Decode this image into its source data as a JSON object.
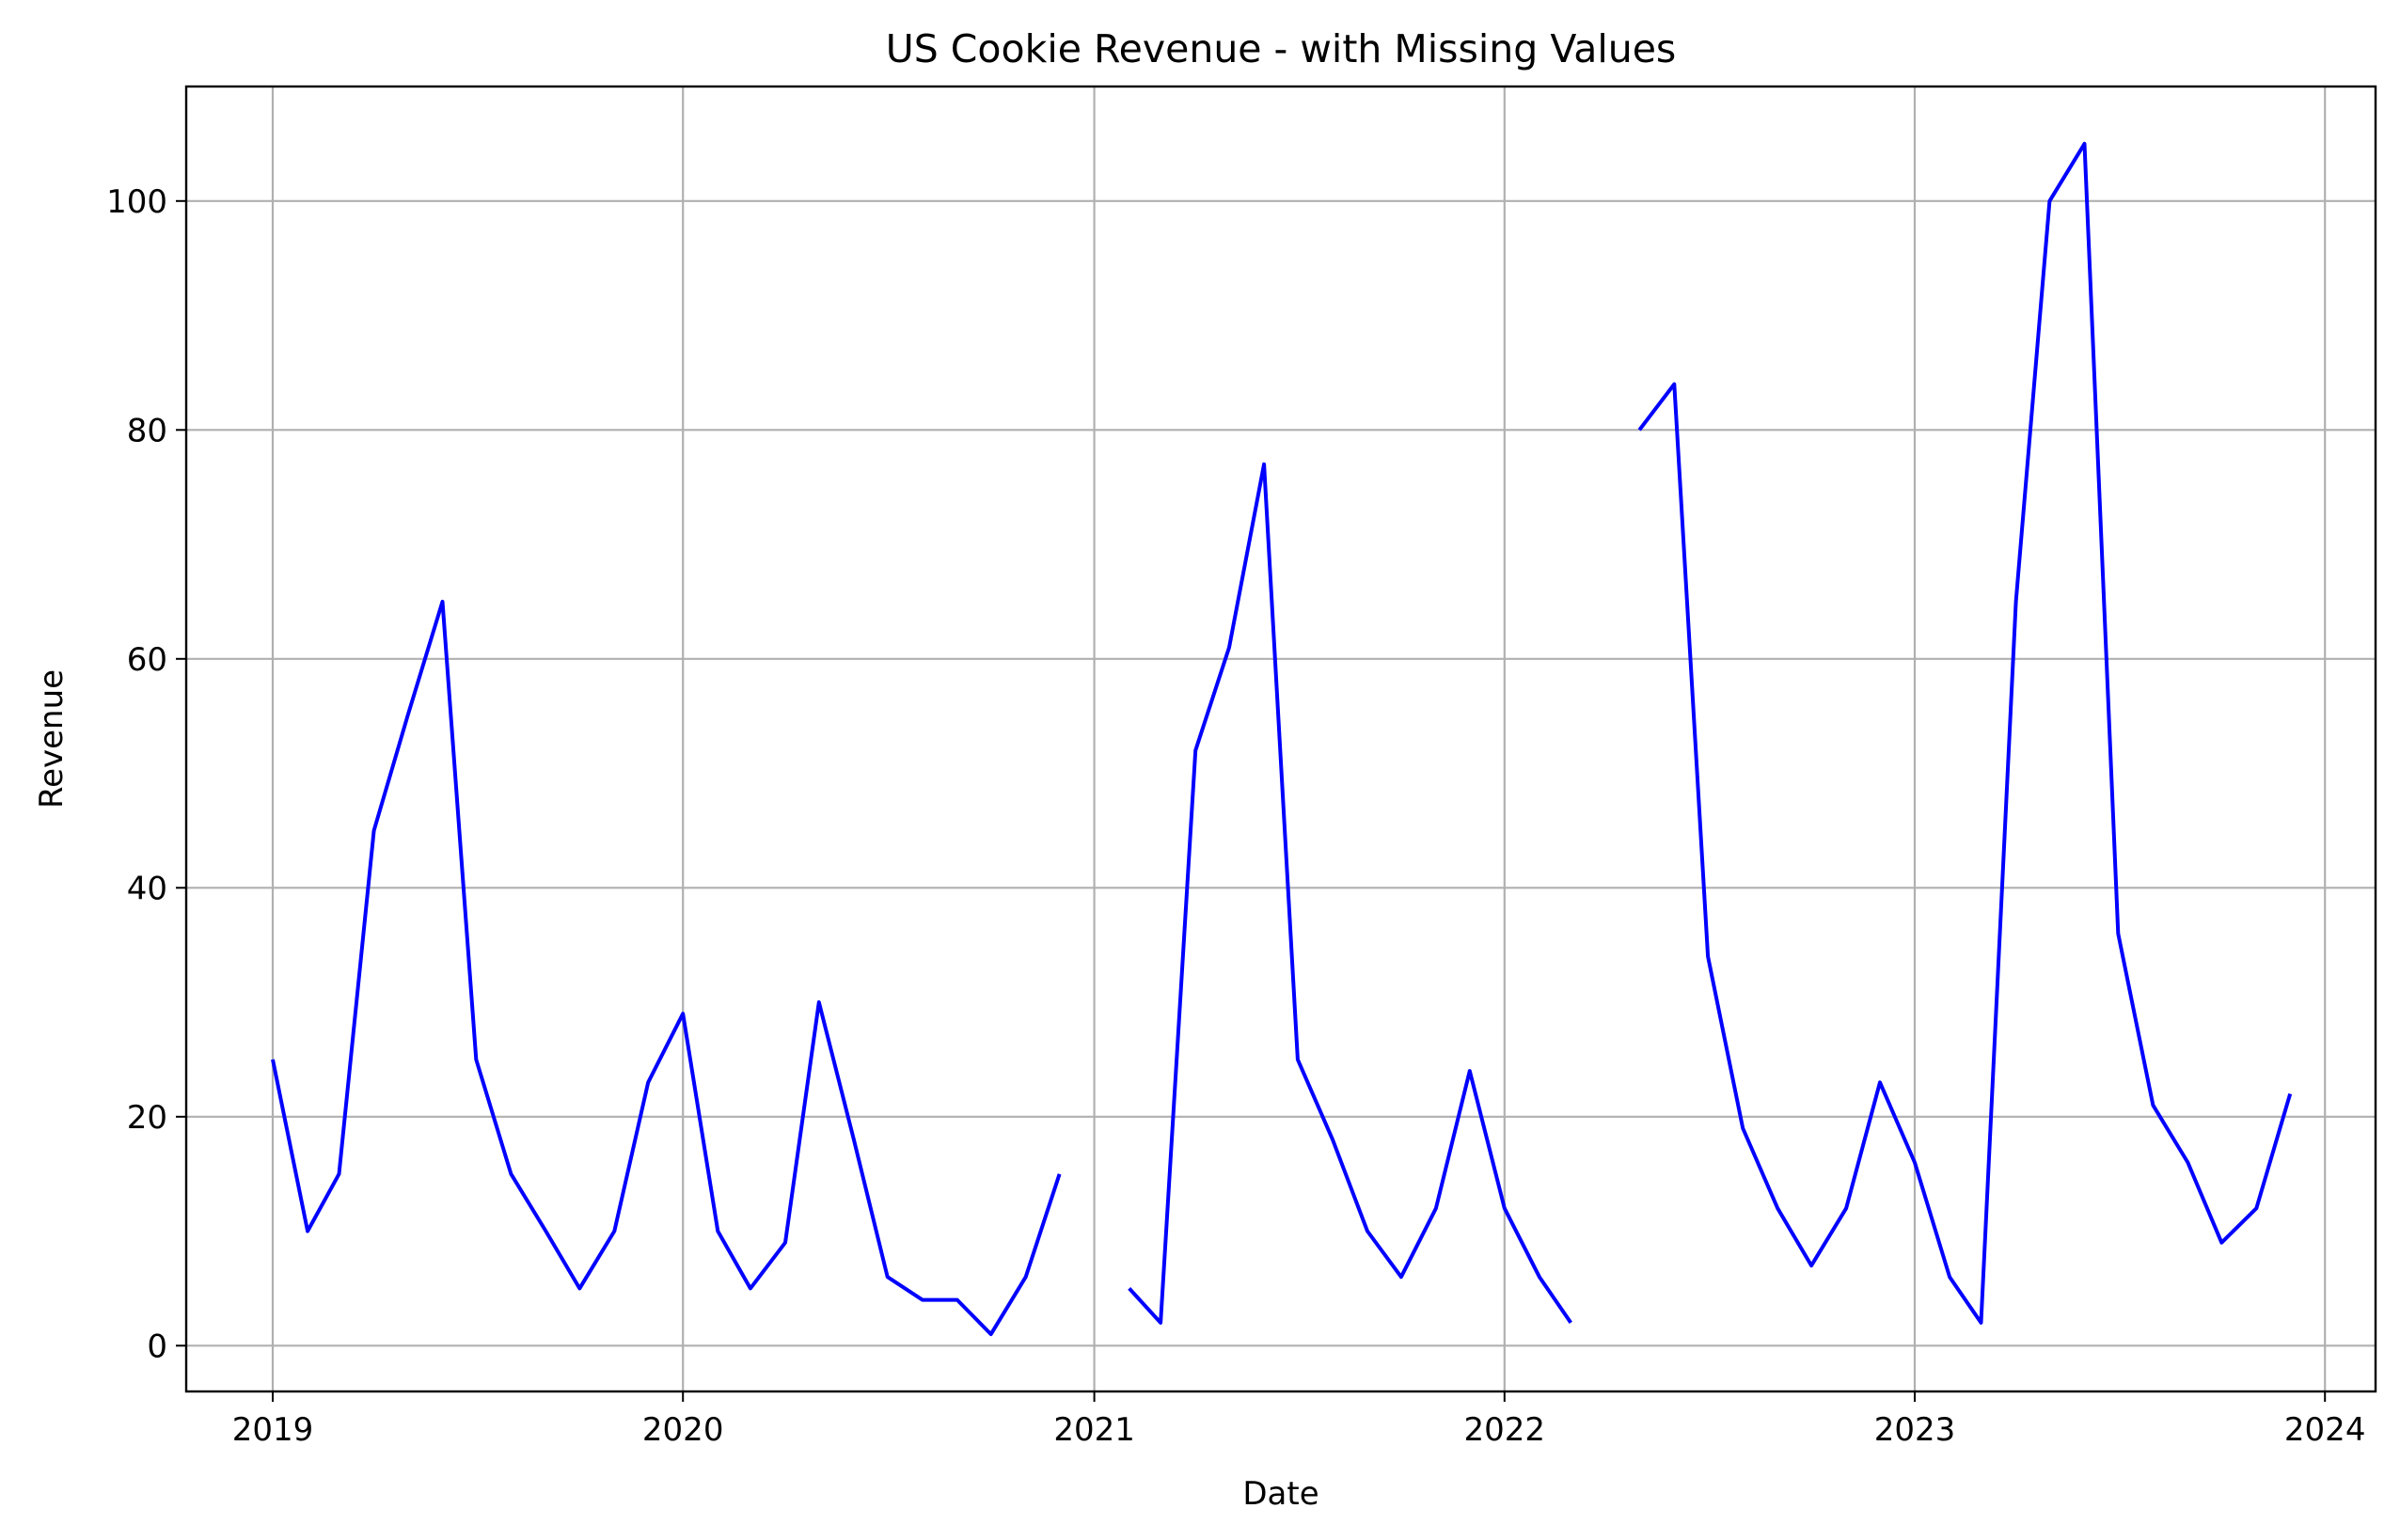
{
  "chart_data": {
    "type": "line",
    "title": "US Cookie Revenue - with Missing Values",
    "xlabel": "Date",
    "ylabel": "Revenue",
    "xlim": [
      "2018-10-16",
      "2024-02-15"
    ],
    "ylim": [
      -4,
      110
    ],
    "x_ticks": [
      {
        "date": "2019-01-01",
        "label": "2019"
      },
      {
        "date": "2020-01-01",
        "label": "2020"
      },
      {
        "date": "2021-01-01",
        "label": "2021"
      },
      {
        "date": "2022-01-01",
        "label": "2022"
      },
      {
        "date": "2023-01-01",
        "label": "2023"
      },
      {
        "date": "2024-01-01",
        "label": "2024"
      }
    ],
    "y_ticks": [
      0,
      20,
      40,
      60,
      80,
      100
    ],
    "grid": true,
    "series": [
      {
        "color": "#0000ff",
        "x": [
          "2019-01-01",
          "2019-02-01",
          "2019-03-01",
          "2019-04-01",
          "2019-05-01",
          "2019-06-01",
          "2019-07-01",
          "2019-08-01",
          "2019-09-01",
          "2019-10-01",
          "2019-11-01",
          "2019-12-01",
          "2020-01-01",
          "2020-02-01",
          "2020-03-01",
          "2020-04-01",
          "2020-05-01",
          "2020-06-01",
          "2020-07-01",
          "2020-08-01",
          "2020-09-01",
          "2020-10-01",
          "2020-11-01",
          "2020-12-01",
          "2021-01-01",
          "2021-02-01",
          "2021-03-01",
          "2021-04-01",
          "2021-05-01",
          "2021-06-01",
          "2021-07-01",
          "2021-08-01",
          "2021-09-01",
          "2021-10-01",
          "2021-11-01",
          "2021-12-01",
          "2022-01-01",
          "2022-02-01",
          "2022-03-01",
          "2022-04-01",
          "2022-05-01",
          "2022-06-01",
          "2022-07-01",
          "2022-08-01",
          "2022-09-01",
          "2022-10-01",
          "2022-11-01",
          "2022-12-01",
          "2023-01-01",
          "2023-02-01",
          "2023-03-01",
          "2023-04-01",
          "2023-05-01",
          "2023-06-01",
          "2023-07-01",
          "2023-08-01",
          "2023-09-01",
          "2023-10-01",
          "2023-11-01",
          "2023-12-01"
        ],
        "values": [
          25,
          10,
          15,
          45,
          55,
          65,
          25,
          15,
          10,
          5,
          10,
          23,
          29,
          10,
          5,
          9,
          30,
          18,
          6,
          4,
          4,
          1,
          6,
          15,
          null,
          5,
          2,
          52,
          61,
          77,
          25,
          18,
          10,
          6,
          12,
          24,
          12,
          6,
          2,
          null,
          80,
          84,
          34,
          19,
          12,
          7,
          12,
          23,
          16,
          6,
          2,
          65,
          100,
          105,
          36,
          21,
          16,
          9,
          12,
          22
        ]
      }
    ]
  }
}
